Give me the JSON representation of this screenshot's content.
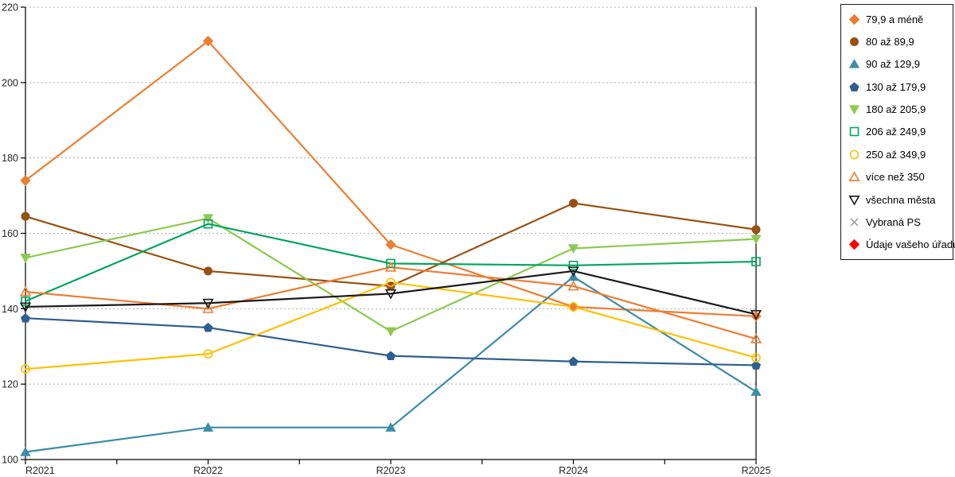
{
  "chart_data": {
    "type": "line",
    "title": "",
    "xlabel": "",
    "ylabel": "",
    "x_categories": [
      "R2021",
      "R2022",
      "R2023",
      "R2024",
      "R2025"
    ],
    "yticks": [
      100,
      120,
      140,
      160,
      180,
      200,
      220
    ],
    "ylim": [
      100,
      220
    ],
    "grid": "horizontal-dotted",
    "grid_color": "#ADADAD",
    "axis_color": "#000000",
    "legend_position": "right-outside",
    "series": [
      {
        "name": "79,9 a méně",
        "color": "#ED7D31",
        "marker": "diamond",
        "marker_fill": "filled",
        "values": [
          174,
          211,
          157,
          140.5,
          138
        ]
      },
      {
        "name": "80 až 89,9",
        "color": "#975112",
        "marker": "circle",
        "marker_fill": "filled",
        "values": [
          164.5,
          150,
          146,
          168,
          161
        ]
      },
      {
        "name": "90 až 129,9",
        "color": "#3C8CA6",
        "marker": "triangle-up",
        "marker_fill": "filled",
        "values": [
          102,
          108.5,
          108.5,
          148.5,
          118
        ]
      },
      {
        "name": "130 až 179,9",
        "color": "#2E5F8F",
        "marker": "pentagon",
        "marker_fill": "filled",
        "values": [
          137.5,
          135,
          127.5,
          126,
          125
        ]
      },
      {
        "name": "180 až 205,9",
        "color": "#8CC94F",
        "marker": "triangle-down",
        "marker_fill": "filled",
        "values": [
          153.5,
          164,
          134,
          156,
          158.5
        ]
      },
      {
        "name": "206 až 249,9",
        "color": "#00A55E",
        "marker": "square",
        "marker_fill": "open",
        "values": [
          142,
          162.5,
          152,
          151.5,
          152.5
        ]
      },
      {
        "name": "250 až 349,9",
        "color": "#FFC000",
        "marker": "circle",
        "marker_fill": "open",
        "values": [
          124,
          128,
          147,
          140.5,
          127
        ]
      },
      {
        "name": "více než 350",
        "color": "#ED7D31",
        "marker": "triangle-up",
        "marker_fill": "open",
        "values": [
          144.5,
          140,
          151,
          146,
          132
        ]
      },
      {
        "name": "všechna města",
        "color": "#1A1A1A",
        "marker": "triangle-down",
        "marker_fill": "open",
        "values": [
          140.5,
          141.5,
          144,
          150,
          138.5
        ]
      },
      {
        "name": "Vybraná PS",
        "color": "#7F7F7F",
        "marker": "x",
        "marker_fill": "open",
        "values": []
      },
      {
        "name": "Údaje vašeho úřadu",
        "color": "#FF0000",
        "marker": "diamond",
        "marker_fill": "filled",
        "values": []
      }
    ]
  }
}
